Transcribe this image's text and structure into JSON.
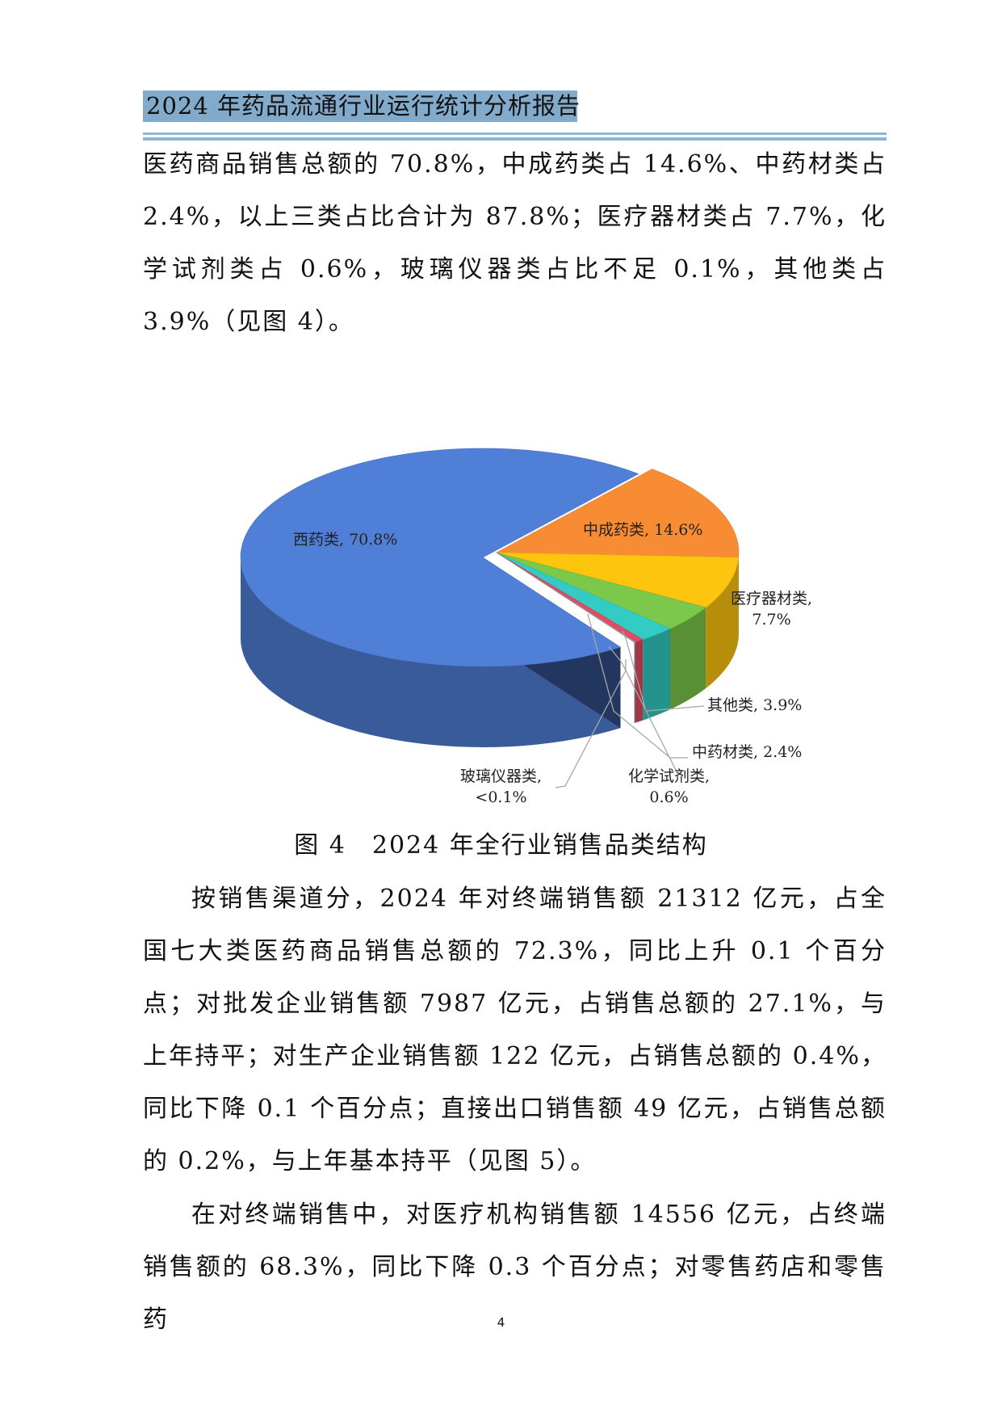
{
  "header": {
    "title": "2024 年药品流通行业运行统计分析报告",
    "band_color": "#82abcb"
  },
  "paragraphs": [
    "医药商品销售总额的 70.8%，中成药类占 14.6%、中药材类占 2.4%，以上三类占比合计为 87.8%；医疗器材类占 7.7%，化学试剂类占 0.6%，玻璃仪器类占比不足 0.1%，其他类占 3.9%（见图 4）。",
    "按销售渠道分，2024 年对终端销售额 21312 亿元，占全国七大类医药商品销售总额的 72.3%，同比上升 0.1 个百分点；对批发企业销售额 7987 亿元，占销售总额的 27.1%，与上年持平；对生产企业销售额 122 亿元，占销售总额的 0.4%，同比下降 0.1 个百分点；直接出口销售额 49 亿元，占销售总额的 0.2%，与上年基本持平（见图 5）。",
    "在对终端销售中，对医疗机构销售额 14556 亿元，占终端销售额的 68.3%，同比下降 0.3 个百分点；对零售药店和零售药"
  ],
  "chart_data": {
    "type": "pie",
    "style": "3d-exploded",
    "title": "图 4　2024 年全行业销售品类结构",
    "slices": [
      {
        "name": "中成药类",
        "value": 14.6,
        "label": "中成药类, 14.6%",
        "color": "#f78c35"
      },
      {
        "name": "医疗器材类",
        "value": 7.7,
        "label_line1": "医疗器材类,",
        "label_line2": "7.7%",
        "color": "#fdc50e"
      },
      {
        "name": "其他类",
        "value": 3.9,
        "label": "其他类, 3.9%",
        "color": "#7cc84a"
      },
      {
        "name": "中药材类",
        "value": 2.4,
        "label": "中药材类, 2.4%",
        "color": "#33ccc4"
      },
      {
        "name": "化学试剂类",
        "value": 0.6,
        "label_line1": "化学试剂类,",
        "label_line2": "0.6%",
        "color": "#e24b63"
      },
      {
        "name": "玻璃仪器类",
        "value": 0.1,
        "label_line1": "玻璃仪器类,",
        "label_line2": "<0.1%",
        "color": "#9aa0a6"
      },
      {
        "name": "西药类",
        "value": 70.8,
        "label": "西药类, 70.8%",
        "color": "#4f7fd6"
      }
    ]
  },
  "page_number": "4"
}
